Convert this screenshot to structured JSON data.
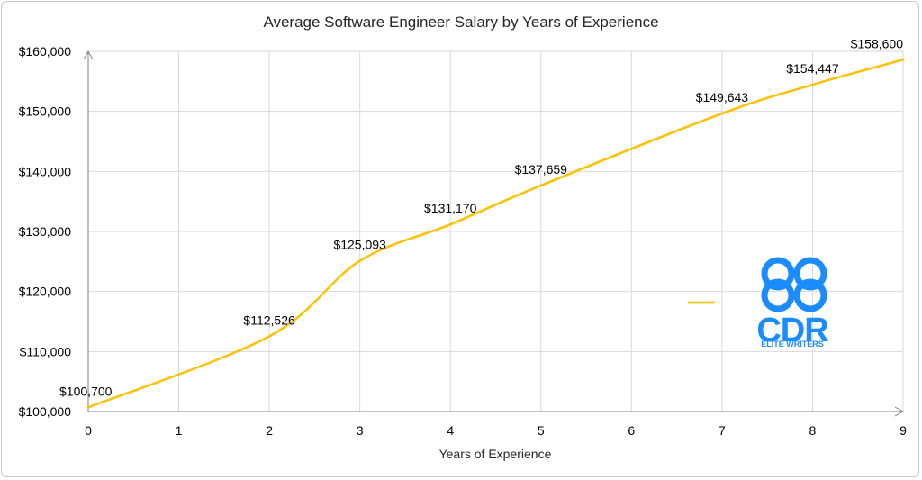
{
  "chart_data": {
    "type": "line",
    "title": "Average Software Engineer Salary by Years of Experience",
    "xlabel": "Years of Experience",
    "ylabel": "",
    "x": [
      0,
      1,
      2,
      3,
      4,
      5,
      6,
      7,
      8,
      9
    ],
    "xlim": [
      0,
      9
    ],
    "ylim": [
      100000,
      160000
    ],
    "y_ticks": [
      "$100,000",
      "$110,000",
      "$120,000",
      "$130,000",
      "$140,000",
      "$150,000",
      "$160,000"
    ],
    "x_ticks": [
      "0",
      "1",
      "2",
      "3",
      "4",
      "5",
      "6",
      "7",
      "8",
      "9"
    ],
    "grid": "vertical and horizontal",
    "legend": "right",
    "series": [
      {
        "color": "#FFC000",
        "points": [
          {
            "x": 0,
            "y": 100700,
            "label": "$100,700"
          },
          {
            "x": 2,
            "y": 112526,
            "label": "$112,526"
          },
          {
            "x": 3,
            "y": 125093,
            "label": "$125,093"
          },
          {
            "x": 4,
            "y": 131170,
            "label": "$131,170"
          },
          {
            "x": 5,
            "y": 137659,
            "label": "$137,659"
          },
          {
            "x": 7,
            "y": 149643,
            "label": "$149,643"
          },
          {
            "x": 8,
            "y": 154447,
            "label": "$154,447"
          },
          {
            "x": 9,
            "y": 158600,
            "label": "$158,600"
          }
        ]
      }
    ]
  },
  "logo": {
    "text": "CDR",
    "subtitle": "ELITE WRITERS",
    "color": "#1a8cff"
  }
}
